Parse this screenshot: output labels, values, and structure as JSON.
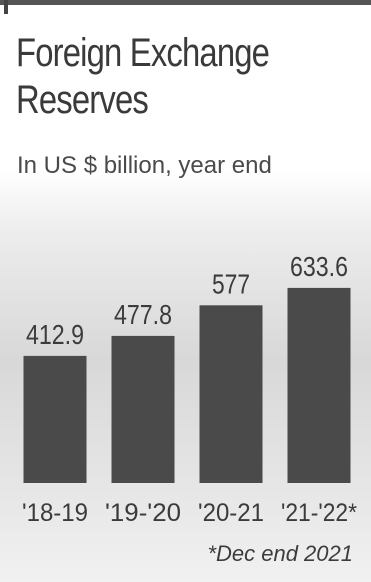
{
  "title_line1": "Foreign Exchange",
  "title_line2": "Reserves",
  "subtitle": "In US $ billion, year end",
  "footnote": "*Dec end 2021",
  "colors": {
    "bar": "#4a4a4a",
    "text": "#3b3b3b"
  },
  "chart_data": {
    "type": "bar",
    "title": "Foreign Exchange Reserves",
    "subtitle": "In US $ billion, year end",
    "categories": [
      "'18-19",
      "'19-'20",
      "'20-21",
      "'21-'22*"
    ],
    "values": [
      412.9,
      477.8,
      577,
      633.6
    ],
    "value_labels": [
      "412.9",
      "477.8",
      "577",
      "633.6"
    ],
    "xlabel": "",
    "ylabel": "",
    "ylim": [
      0,
      700
    ],
    "grid": false,
    "legend": "none"
  }
}
